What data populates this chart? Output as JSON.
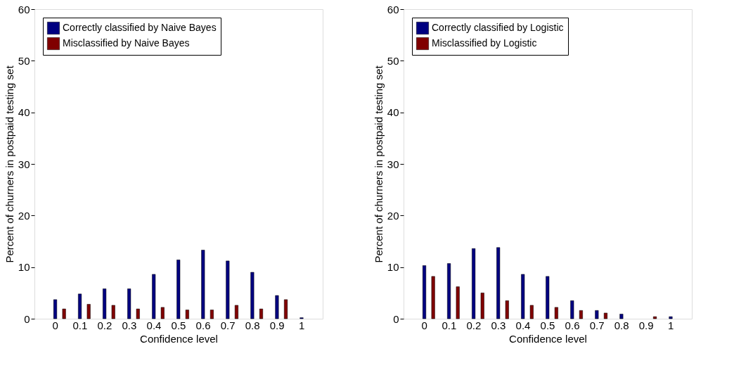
{
  "chart_data": [
    {
      "type": "bar",
      "xlabel": "Confidence level",
      "ylabel": "Percent of churners in postpaid testing set",
      "categories": [
        "0",
        "0.1",
        "0.2",
        "0.3",
        "0.4",
        "0.5",
        "0.6",
        "0.7",
        "0.8",
        "0.9",
        "1"
      ],
      "series": [
        {
          "name": "Correctly classified by Naive Bayes",
          "color": "#000080",
          "values": [
            3.7,
            4.8,
            5.8,
            5.8,
            8.6,
            11.4,
            13.3,
            11.2,
            9.0,
            4.5,
            0.2
          ]
        },
        {
          "name": "Misclassified by Naive Bayes",
          "color": "#800000",
          "values": [
            1.9,
            2.8,
            2.6,
            1.9,
            2.2,
            1.7,
            1.7,
            2.6,
            1.9,
            3.7,
            null
          ]
        }
      ],
      "ylim": [
        0,
        60
      ],
      "yticks": [
        0,
        10,
        20,
        30,
        40,
        50,
        60
      ],
      "grid": false,
      "legend": "top left"
    },
    {
      "type": "bar",
      "xlabel": "Confidence level",
      "ylabel": "Percent of churners in postpaid testing set",
      "categories": [
        "0",
        "0.1",
        "0.2",
        "0.3",
        "0.4",
        "0.5",
        "0.6",
        "0.7",
        "0.8",
        "0.9",
        "1"
      ],
      "series": [
        {
          "name": "Correctly classified by Logistic",
          "color": "#000080",
          "values": [
            10.3,
            10.7,
            13.6,
            13.8,
            8.6,
            8.2,
            3.5,
            1.6,
            0.9,
            null,
            0.4
          ]
        },
        {
          "name": "Misclassified by Logistic",
          "color": "#800000",
          "values": [
            8.2,
            6.2,
            5.0,
            3.5,
            2.6,
            2.2,
            1.6,
            1.1,
            null,
            0.4,
            null
          ]
        }
      ],
      "ylim": [
        0,
        60
      ],
      "yticks": [
        0,
        10,
        20,
        30,
        40,
        50,
        60
      ],
      "grid": false,
      "legend": "top left"
    }
  ]
}
